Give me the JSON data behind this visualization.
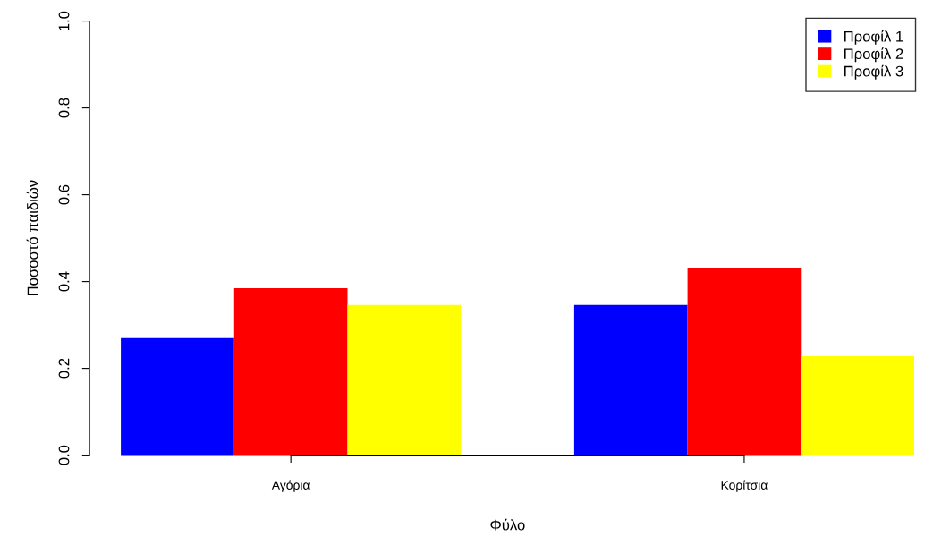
{
  "chart_data": {
    "type": "bar",
    "xlabel": "Φύλο",
    "ylabel": "Ποσοστό παιδιών",
    "categories": [
      "Αγόρια",
      "Κορίτσια"
    ],
    "series": [
      {
        "name": "Προφίλ 1",
        "color": "#0000ff",
        "values": [
          0.27,
          0.346
        ]
      },
      {
        "name": "Προφίλ 2",
        "color": "#ff0000",
        "values": [
          0.385,
          0.43
        ]
      },
      {
        "name": "Προφίλ 3",
        "color": "#ffff00",
        "values": [
          0.346,
          0.228
        ]
      }
    ],
    "ylim": [
      0,
      1
    ],
    "yticks": [
      {
        "value": 0,
        "label": "0.0"
      },
      {
        "value": 0.2,
        "label": "0.2"
      },
      {
        "value": 0.4,
        "label": "0.4"
      },
      {
        "value": 0.6,
        "label": "0.6"
      },
      {
        "value": 0.8,
        "label": "0.8"
      },
      {
        "value": 1,
        "label": "1.0"
      }
    ],
    "grid": false,
    "legend": "top right"
  }
}
